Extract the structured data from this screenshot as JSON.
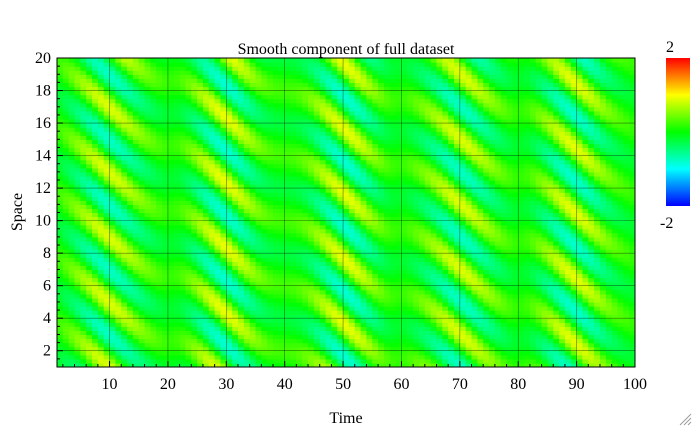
{
  "chart_data": {
    "type": "heatmap",
    "title": "Smooth component of full dataset",
    "xlabel": "Time",
    "ylabel": "Space",
    "xlim": [
      1,
      100
    ],
    "ylim": [
      1,
      20
    ],
    "x_ticks": [
      10,
      20,
      30,
      40,
      50,
      60,
      70,
      80,
      90,
      100
    ],
    "y_ticks": [
      2,
      4,
      6,
      8,
      10,
      12,
      14,
      16,
      18,
      20
    ],
    "colorbar": {
      "min": -2,
      "max": 2,
      "min_label": "-2",
      "max_label": "2",
      "colormap": [
        "#0000ff",
        "#00ffff",
        "#00ff00",
        "#ffff00",
        "#ff0000"
      ]
    },
    "grid": true,
    "pattern": {
      "description_of_field": "travelling wave bands that drift downward over time, with high-amplitude bursts",
      "spatial_period": 4,
      "wave_packet_centers_time": [
        10,
        30,
        50,
        70,
        90
      ],
      "peak_value": 0.9,
      "trough_value": -0.8
    }
  }
}
